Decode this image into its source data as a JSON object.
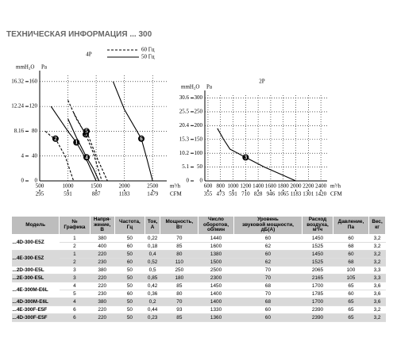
{
  "header": {
    "title": "ТЕХНИЧЕСКАЯ ИНФОРМАЦИЯ  ... 300"
  },
  "chart_data": [
    {
      "type": "line",
      "title": "4P",
      "color": "#000000",
      "legend": [
        {
          "label": "60 Гц",
          "style": "dashed"
        },
        {
          "label": "50 Гц",
          "style": "solid"
        }
      ],
      "y_label": "mmH₂O",
      "y2_label": "Pa",
      "x_label": "m³/h",
      "x2_label": "CFM",
      "xlim": [
        500,
        2750
      ],
      "xticks": [
        500,
        1000,
        1500,
        2000,
        2500
      ],
      "x2lim": [
        295,
        1627
      ],
      "x2ticks": [
        295,
        591,
        887,
        1183,
        1479
      ],
      "ylim": [
        0,
        17.34
      ],
      "yticks": [
        0,
        {
          "value": 4.08,
          "label": "4"
        },
        8.16,
        12.24,
        16.32
      ],
      "y2lim": [
        0,
        170
      ],
      "y2ticks": [
        0,
        40,
        80,
        120,
        160
      ],
      "series": [
        {
          "name": "1",
          "style": "solid",
          "axis": "y2",
          "x": [
            700,
            1000,
            1150,
            1350,
            1500
          ],
          "values": [
            120,
            80,
            62,
            30,
            0
          ]
        },
        {
          "name": "2",
          "style": "dashed",
          "axis": "y2",
          "x": [
            600,
            700,
            780,
            950,
            1100
          ],
          "values": [
            80,
            72,
            68,
            40,
            0
          ]
        },
        {
          "name": "3",
          "style": "dashed",
          "axis": "y2",
          "x": [
            1000,
            1150,
            1315,
            1450,
            1600
          ],
          "values": [
            130,
            100,
            75,
            45,
            0
          ]
        },
        {
          "name": "4",
          "style": "solid",
          "axis": "y2",
          "x": [
            1000,
            1150,
            1330,
            1450,
            1550
          ],
          "values": [
            100,
            70,
            38,
            20,
            0
          ]
        },
        {
          "name": "5",
          "style": "dashed",
          "axis": "y2",
          "x": [
            1100,
            1250,
            1330,
            1500,
            1700
          ],
          "values": [
            110,
            85,
            80,
            40,
            0
          ]
        },
        {
          "name": "6",
          "style": "solid",
          "axis": "y2",
          "x": [
            1800,
            2000,
            2300,
            2400,
            2500
          ],
          "values": [
            160,
            115,
            68,
            35,
            0
          ]
        }
      ]
    },
    {
      "type": "line",
      "title": "2P",
      "color": "#000000",
      "y_label": "mmH₂O",
      "y2_label": "Pa",
      "x_label": "m³/h",
      "x2_label": "CFM",
      "xlim": [
        550,
        2500
      ],
      "xticks": [
        600,
        800,
        1000,
        1200,
        1400,
        1600,
        1800,
        2000,
        2200,
        2400
      ],
      "x2lim": [
        325.4,
        1479.2
      ],
      "x2ticks": [
        355,
        473,
        591,
        710,
        828,
        946,
        1065,
        1183,
        1301,
        1420
      ],
      "ylim": [
        0,
        31.62
      ],
      "yticks": [
        0,
        5.1,
        10.2,
        15.3,
        20.4,
        25.5,
        30.6
      ],
      "y2lim": [
        0,
        310
      ],
      "y2ticks": [
        0,
        50,
        100,
        150,
        200,
        250,
        300
      ],
      "series": [
        {
          "name": "3",
          "style": "solid",
          "axis": "y2",
          "x": [
            750,
            850,
            950,
            1200,
            1500,
            1800,
            2000
          ],
          "values": [
            190,
            150,
            115,
            85,
            50,
            20,
            0
          ]
        }
      ]
    }
  ],
  "table": {
    "headers": [
      "Модель",
      "№\nГрафика",
      "Напря-\nжение,\nВ",
      "Частота,\nГц",
      "Ток,\nА",
      "Мощность,\nВт",
      "Число\nоборотов,\nоб/мин",
      "Уровень\nзвуковой мощности,\nдБ(А)",
      "Расход\nвоздуха,\nм³/ч",
      "Давление,\nПа",
      "Вес,\nкг"
    ],
    "groups": [
      {
        "model": "...4D-300-E5Z",
        "rows": [
          [
            "1",
            "380",
            "50",
            "0,22",
            "70",
            "1440",
            "60",
            "1450",
            "60",
            "3,2"
          ],
          [
            "2",
            "400",
            "60",
            "0,18",
            "85",
            "1600",
            "62",
            "1525",
            "68",
            "3,2"
          ]
        ]
      },
      {
        "model": "...4E-300-E5Z",
        "rows": [
          [
            "1",
            "220",
            "50",
            "0,4",
            "80",
            "1380",
            "60",
            "1450",
            "60",
            "3,2"
          ],
          [
            "2",
            "230",
            "60",
            "0,52",
            "110",
            "1500",
            "62",
            "1525",
            "68",
            "3,2"
          ]
        ]
      },
      {
        "model": "...2D-300-E5L",
        "rows": [
          [
            "3",
            "380",
            "50",
            "0,5",
            "250",
            "2500",
            "70",
            "2065",
            "100",
            "3,3"
          ]
        ]
      },
      {
        "model": "...2E-300-E5L",
        "rows": [
          [
            "3",
            "220",
            "50",
            "0,85",
            "180",
            "2300",
            "70",
            "2165",
            "105",
            "3,3"
          ]
        ]
      },
      {
        "model": "...4E-300M-E6L",
        "rows": [
          [
            "4",
            "220",
            "50",
            "0,42",
            "85",
            "1450",
            "68",
            "1700",
            "65",
            "3,6"
          ],
          [
            "5",
            "230",
            "60",
            "0,36",
            "80",
            "1400",
            "70",
            "1785",
            "60",
            "3,6"
          ]
        ]
      },
      {
        "model": "...4D-300M-E6L",
        "rows": [
          [
            "4",
            "380",
            "50",
            "0,2",
            "70",
            "1400",
            "68",
            "1700",
            "65",
            "3,6"
          ]
        ]
      },
      {
        "model": "...4E-300F-E5F",
        "rows": [
          [
            "6",
            "220",
            "50",
            "0,44",
            "93",
            "1330",
            "60",
            "2390",
            "65",
            "3,2"
          ]
        ]
      },
      {
        "model": "...4D-300F-E5F",
        "rows": [
          [
            "6",
            "220",
            "50",
            "0,23",
            "85",
            "1360",
            "60",
            "2390",
            "65",
            "3,2"
          ]
        ]
      }
    ]
  }
}
